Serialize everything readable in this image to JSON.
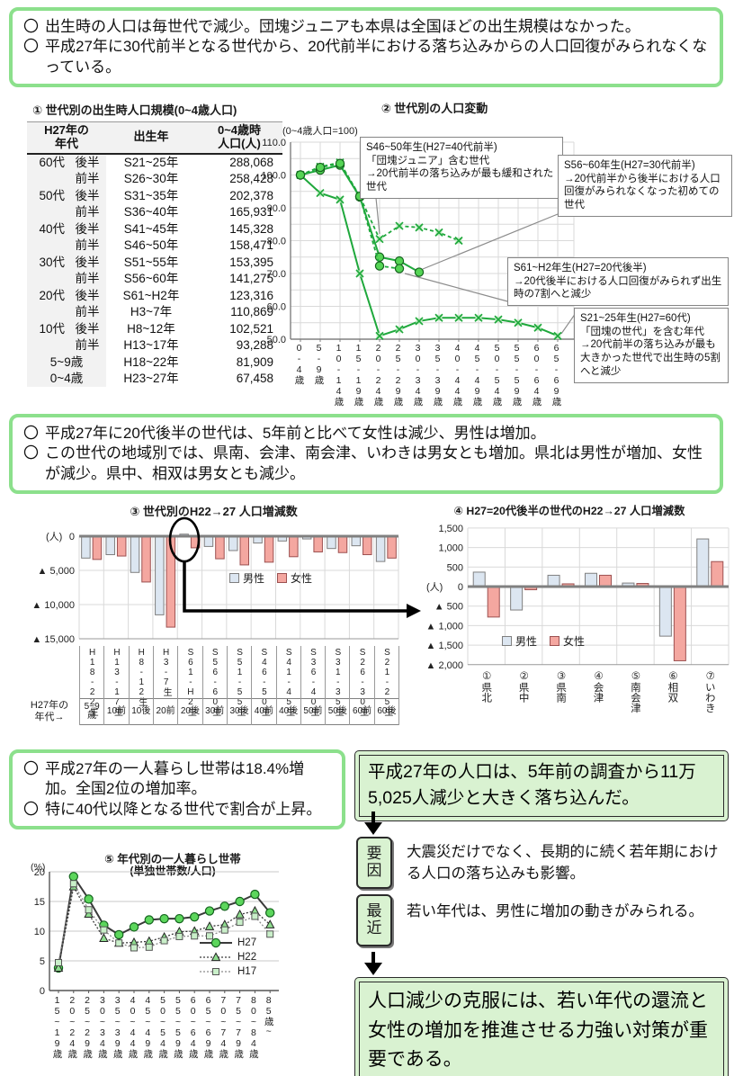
{
  "colors": {
    "box_border": "#8ce08c",
    "box_fill": "#d9f2d1",
    "male_bar": "#dce6f1",
    "female_bar": "#f4a7a0",
    "line_green": "#1fa83c"
  },
  "box1": {
    "bullet": "〇",
    "items": [
      "出生時の人口は毎世代で減少。団塊ジュニアも本県は全国ほどの出生規模はなかった。",
      "平成27年に30代前半となる世代から、20代前半における落ち込みからの人口回復がみられなくなっている。"
    ]
  },
  "table1": {
    "title": "① 世代別の出生時人口規模(0~4歳人口)",
    "col1": "H27年の\n年代",
    "col2": "出生年",
    "col3": "0~4歳時\n人口(人)",
    "rows": [
      [
        "60代",
        "後半",
        "S21~25年",
        "288,068"
      ],
      [
        "",
        "前半",
        "S26~30年",
        "258,428"
      ],
      [
        "50代",
        "後半",
        "S31~35年",
        "202,378"
      ],
      [
        "",
        "前半",
        "S36~40年",
        "165,931"
      ],
      [
        "40代",
        "後半",
        "S41~45年",
        "145,328"
      ],
      [
        "",
        "前半",
        "S46~50年",
        "158,471"
      ],
      [
        "30代",
        "後半",
        "S51~55年",
        "153,395"
      ],
      [
        "",
        "前半",
        "S56~60年",
        "141,275"
      ],
      [
        "20代",
        "後半",
        "S61~H2年",
        "123,316"
      ],
      [
        "",
        "前半",
        "H3~7年",
        "110,869"
      ],
      [
        "10代",
        "後半",
        "H8~12年",
        "102,521"
      ],
      [
        "",
        "前半",
        "H13~17年",
        "93,288"
      ],
      [
        "5~9歳",
        "",
        "H18~22年",
        "81,909"
      ],
      [
        "0~4歳",
        "",
        "H23~27年",
        "67,458"
      ]
    ]
  },
  "box2": {
    "bullet": "〇",
    "items": [
      "平成27年に20代後半の世代は、5年前と比べて女性は減少、男性は増加。",
      "この世代の地域別では、県南、会津、南会津、いわきは男女とも増加。県北は男性が増加、女性が減少。県中、相双は男女とも減少。"
    ]
  },
  "box3": {
    "bullet": "〇",
    "items": [
      "平成27年の一人暮らし世帯は18.4%増加。全国2位の増加率。",
      "特に40代以降となる世代で割合が上昇。"
    ]
  },
  "flow": {
    "headline": "平成27年の人口は、5年前の調査から11万5,025人減少と大きく落ち込んだ。",
    "factor_label": "要因",
    "factor_text": "大震災だけでなく、長期的に続く若年期における人口の落ち込みも影響。",
    "recent_label": "最近",
    "recent_text": "若い年代は、男性に増加の動きがみられる。",
    "conclusion": "人口減少の克服には、若い年代の還流と女性の増加を推進させる力強い対策が重要である。"
  },
  "chart_data": [
    {
      "id": "chart2",
      "type": "line",
      "title": "② 世代別の人口変動",
      "subtitle": "(0~4歳人口=100)",
      "categories": [
        "0-4歳",
        "5-9歳",
        "10-14歳",
        "15-19歳",
        "20-24歳",
        "25-29歳",
        "30-34歳",
        "35-39歳",
        "40-44歳",
        "45-49歳",
        "50-54歳",
        "55-59歳",
        "60-64歳",
        "65-69歳"
      ],
      "ylim": [
        50,
        110
      ],
      "ytick_labels": [
        "110.0",
        "100.0",
        "90.0",
        "80.0",
        "70.0",
        "60.0",
        "50.0"
      ],
      "grid": "on",
      "series": [
        {
          "name": "S21~25年生(H27=60代)",
          "marker": "x",
          "dash": false,
          "color": "#1fa83c",
          "marker_fill": "#c6eec6",
          "values": [
            100,
            94.5,
            92.5,
            70,
            51,
            53,
            55.5,
            56.5,
            56.5,
            56.5,
            56,
            55,
            53.5,
            51
          ]
        },
        {
          "name": "S46~50年生(H27=40代前半)",
          "marker": "x",
          "dash": true,
          "color": "#1fa83c",
          "marker_fill": "#c6eec6",
          "values": [
            100,
            102.5,
            103.8,
            93.5,
            80.5,
            84.5,
            84,
            82.5,
            80
          ]
        },
        {
          "name": "S56~60年生(H27=30代前半)",
          "marker": "circle",
          "dash": false,
          "color": "#1fa83c",
          "marker_fill": "#55d455",
          "values": [
            100,
            101.5,
            103,
            93.3,
            75,
            73.8,
            70.4
          ]
        },
        {
          "name": "S61~H2年生(H27=20代後半)",
          "marker": "circle",
          "dash": true,
          "color": "#1fa83c",
          "marker_fill": "#55d455",
          "values": [
            100,
            102.3,
            103.5,
            93.5,
            72.3,
            71.5
          ]
        }
      ],
      "annotations": [
        {
          "text": "S46~50年生(H27=40代前半)\n「団塊ジュニア」含む世代\n→20代前半の落ち込みが最も緩和された世代"
        },
        {
          "text": "S56~60年生(H27=30代前半)\n→20代前半から後半における人口回復がみられなくなった初めての世代"
        },
        {
          "text": "S61~H2年生(H27=20代後半)\n→20代後半における人口回復がみられず出生時の7割へと減少"
        },
        {
          "text": "S21~25年生(H27=60代)\n「団塊の世代」を含む年代\n→20代前半の落ち込みが最も大きかった世代で出生時の5割へと減少"
        }
      ]
    },
    {
      "id": "chart3",
      "type": "bar",
      "title": "③ 世代別のH22→27 人口増減数",
      "unit_label": "(人)",
      "neg_prefix": "▲ ",
      "categories": [
        "H18-22生",
        "H13-17生",
        "H8-12生",
        "H3-7生",
        "S61-H2生",
        "S56-60生",
        "S51-55生",
        "S46-50生",
        "S41-45生",
        "S36-40生",
        "S31-35生",
        "S26-30生",
        "S21-25生"
      ],
      "row_label": "H27年の\n年代→",
      "sub_categories": [
        "5~9歳",
        "10前",
        "10後",
        "20前",
        "20後",
        "30前",
        "30後",
        "40前",
        "40後",
        "50前",
        "50後",
        "60前",
        "60後"
      ],
      "ylim": [
        -15000,
        1000
      ],
      "ytick_values": [
        0,
        -5000,
        -10000,
        -15000
      ],
      "series": [
        {
          "name": "男性",
          "color": "#dce6f1",
          "border": "#7f7f7f",
          "values": [
            -3200,
            -2700,
            -5300,
            -11500,
            300,
            -1500,
            -2100,
            -1000,
            -700,
            -400,
            -1800,
            -1400,
            -3700
          ]
        },
        {
          "name": "女性",
          "color": "#f4a7a0",
          "border": "#9c5151",
          "values": [
            -3400,
            -2900,
            -6700,
            -13300,
            -1700,
            -3300,
            -4200,
            -3800,
            -3000,
            -2300,
            -2400,
            -2700,
            -3200
          ]
        }
      ]
    },
    {
      "id": "chart4",
      "type": "bar",
      "title": "④ H27=20代後半の世代のH22→27 人口増減数",
      "unit_label": "(人)",
      "neg_prefix": "▲ ",
      "categories": [
        "①県北",
        "②県中",
        "③県南",
        "④会津",
        "⑤南会津",
        "⑥相双",
        "⑦いわき"
      ],
      "ylim": [
        -2000,
        1500
      ],
      "ytick_values": [
        1500,
        1000,
        500,
        0,
        -500,
        -1000,
        -1500,
        -2000
      ],
      "series": [
        {
          "name": "男性",
          "color": "#dce6f1",
          "border": "#7f7f7f",
          "values": [
            370,
            -600,
            290,
            340,
            90,
            -1270,
            1220
          ]
        },
        {
          "name": "女性",
          "color": "#f4a7a0",
          "border": "#9c5151",
          "values": [
            -780,
            -80,
            70,
            290,
            80,
            -1900,
            640
          ]
        }
      ]
    },
    {
      "id": "chart5",
      "type": "line",
      "title": "⑤ 年代別の一人暮らし世帯",
      "subtitle": "(単独世帯数/人口)",
      "unit_label": "(%)",
      "categories": [
        "15~19歳",
        "20~24歳",
        "25~29歳",
        "30~34歳",
        "35~39歳",
        "40~44歳",
        "45~49歳",
        "50~54歳",
        "55~59歳",
        "60~64歳",
        "65~69歳",
        "70~74歳",
        "75~79歳",
        "80~84歳",
        "85歳~"
      ],
      "ylim": [
        0,
        20
      ],
      "ytick_values": [
        20,
        15,
        10,
        5,
        0
      ],
      "legend_position": "inside-right",
      "series": [
        {
          "name": "H27",
          "marker": "circle",
          "dash": false,
          "color": "#3a3a3a",
          "marker_fill": "#5cd65c",
          "values": [
            3.8,
            19.2,
            15.4,
            11.0,
            9.4,
            10.7,
            11.9,
            12.1,
            12.1,
            12.4,
            13.4,
            14.2,
            15.0,
            16.2,
            13.1
          ]
        },
        {
          "name": "H22",
          "marker": "triangle",
          "dash": true,
          "color": "#3a3a3a",
          "marker_fill": "#8fdd8f",
          "values": [
            3.8,
            17.5,
            12.9,
            8.8,
            8.0,
            8.1,
            8.3,
            9.0,
            9.9,
            10.0,
            10.8,
            11.1,
            12.8,
            13.4,
            11.1
          ]
        },
        {
          "name": "H17",
          "marker": "square",
          "dash": true,
          "color": "#8a8a8a",
          "marker_fill": "#c9efc9",
          "values": [
            4.7,
            18.0,
            13.6,
            10.2,
            8.0,
            7.2,
            7.3,
            8.4,
            9.1,
            9.2,
            9.2,
            10.2,
            11.5,
            12.5,
            9.5
          ]
        }
      ]
    }
  ]
}
